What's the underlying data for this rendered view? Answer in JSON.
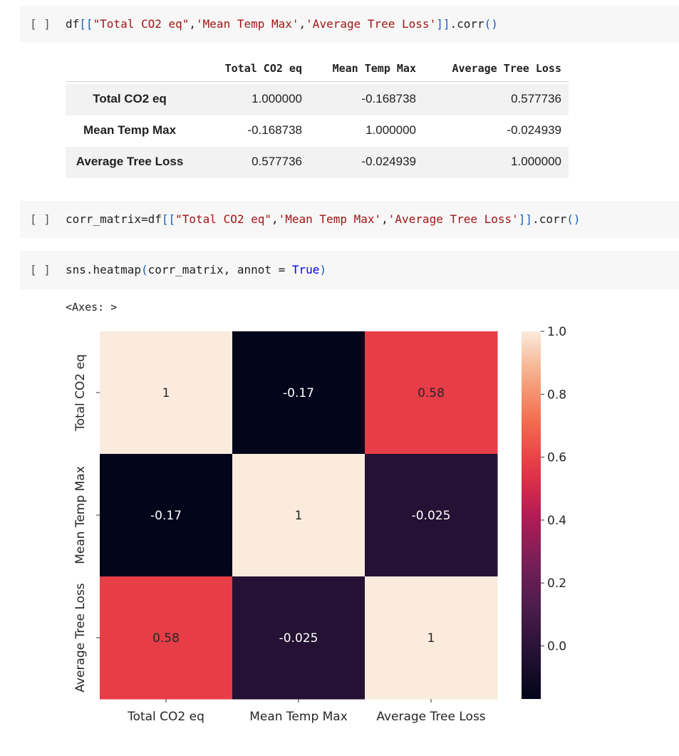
{
  "cells": [
    {
      "bracket": "[ ]",
      "tokens": [
        {
          "t": "df",
          "c": ""
        },
        {
          "t": "[[",
          "c": "br"
        },
        {
          "t": "\"Total CO2 eq\"",
          "c": "str"
        },
        {
          "t": ",",
          "c": ""
        },
        {
          "t": "'Mean Temp Max'",
          "c": "str"
        },
        {
          "t": ",",
          "c": ""
        },
        {
          "t": "'Average Tree Loss'",
          "c": "str"
        },
        {
          "t": "]]",
          "c": "br"
        },
        {
          "t": ".corr",
          "c": ""
        },
        {
          "t": "()",
          "c": "br"
        }
      ]
    },
    {
      "bracket": "[ ]",
      "tokens": [
        {
          "t": "corr_matrix=df",
          "c": ""
        },
        {
          "t": "[[",
          "c": "br"
        },
        {
          "t": "\"Total CO2 eq\"",
          "c": "str"
        },
        {
          "t": ",",
          "c": ""
        },
        {
          "t": "'Mean Temp Max'",
          "c": "str"
        },
        {
          "t": ",",
          "c": ""
        },
        {
          "t": "'Average Tree Loss'",
          "c": "str"
        },
        {
          "t": "]]",
          "c": "br"
        },
        {
          "t": ".corr",
          "c": ""
        },
        {
          "t": "()",
          "c": "br"
        }
      ]
    },
    {
      "bracket": "[ ]",
      "tokens": [
        {
          "t": "sns.heatmap",
          "c": ""
        },
        {
          "t": "(",
          "c": "br"
        },
        {
          "t": "corr_matrix, annot = ",
          "c": ""
        },
        {
          "t": "True",
          "c": "kw"
        },
        {
          "t": ")",
          "c": "br"
        }
      ]
    }
  ],
  "dataframe": {
    "columns": [
      "Total CO2 eq",
      "Mean Temp Max",
      "Average Tree Loss"
    ],
    "rows": [
      {
        "index": "Total CO2 eq",
        "values": [
          "1.000000",
          "-0.168738",
          "0.577736"
        ]
      },
      {
        "index": "Mean Temp Max",
        "values": [
          "-0.168738",
          "1.000000",
          "-0.024939"
        ]
      },
      {
        "index": "Average Tree Loss",
        "values": [
          "0.577736",
          "-0.024939",
          "1.000000"
        ]
      }
    ]
  },
  "axes_text": "<Axes: >",
  "chart_data": {
    "type": "heatmap",
    "x_categories": [
      "Total CO2 eq",
      "Mean Temp Max",
      "Average Tree Loss"
    ],
    "y_categories": [
      "Total CO2 eq",
      "Mean Temp Max",
      "Average Tree Loss"
    ],
    "values": [
      [
        1,
        -0.17,
        0.58
      ],
      [
        -0.17,
        1,
        -0.025
      ],
      [
        0.58,
        -0.025,
        1
      ]
    ],
    "annotations": [
      [
        "1",
        "-0.17",
        "0.58"
      ],
      [
        "-0.17",
        "1",
        "-0.025"
      ],
      [
        "0.58",
        "-0.025",
        "1"
      ]
    ],
    "colormap": "rocket",
    "colorbar": {
      "vmin": -0.168738,
      "vmax": 1.0,
      "ticks": [
        1.0,
        0.8,
        0.6,
        0.4,
        0.2,
        0.0
      ],
      "tick_labels": [
        "1.0",
        "0.8",
        "0.6",
        "0.4",
        "0.2",
        "0.0"
      ]
    },
    "title": "",
    "xlabel": "",
    "ylabel": ""
  }
}
